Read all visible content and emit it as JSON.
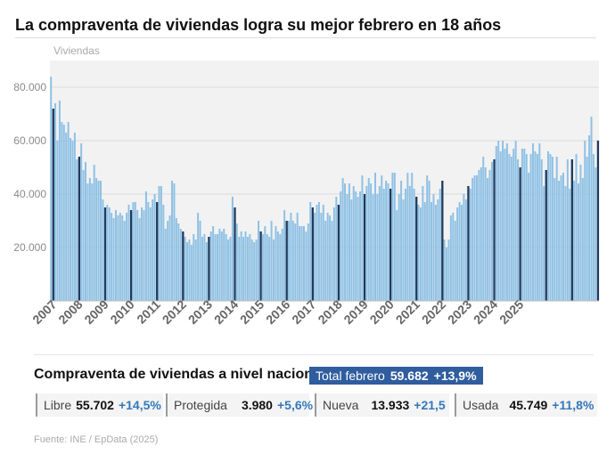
{
  "title": "La compraventa de viviendas logra su mejor febrero en 18 años",
  "chart_data": {
    "type": "bar",
    "ylabel": "Viviendas",
    "ylim": [
      0,
      90000
    ],
    "yticks": [
      "20.000",
      "40.000",
      "60.000",
      "80.000"
    ],
    "ytick_values": [
      20000,
      40000,
      60000,
      80000
    ],
    "xlabels": [
      "2007",
      "2008",
      "2009",
      "2010",
      "2011",
      "2012",
      "2013",
      "2014",
      "2015",
      "2016",
      "2017",
      "2018",
      "2019",
      "2020",
      "2021",
      "2022",
      "2023",
      "2024",
      "2025"
    ],
    "highlight": "February of each year",
    "series": [
      {
        "name": "Compraventa de viviendas",
        "start": "2007-01",
        "values": [
          84000,
          72000,
          74000,
          60000,
          75000,
          67000,
          66000,
          63000,
          67000,
          61000,
          60000,
          63000,
          53000,
          54000,
          59000,
          49000,
          52000,
          44000,
          46000,
          44000,
          51000,
          46000,
          45000,
          45000,
          38000,
          35000,
          36000,
          35000,
          33000,
          31000,
          34000,
          32000,
          33000,
          32000,
          30000,
          33000,
          36000,
          34000,
          37000,
          37000,
          34000,
          31000,
          35000,
          34000,
          41000,
          37000,
          35000,
          38000,
          40000,
          37000,
          43000,
          43000,
          36000,
          27000,
          30000,
          32000,
          45000,
          44000,
          31000,
          29000,
          27000,
          26000,
          24000,
          22000,
          23000,
          21000,
          25000,
          23000,
          33000,
          30000,
          24000,
          25000,
          22000,
          24000,
          26000,
          28000,
          25000,
          25000,
          27000,
          26000,
          27000,
          25000,
          23000,
          24000,
          39000,
          35000,
          29000,
          24000,
          26000,
          24000,
          26000,
          24000,
          25000,
          23000,
          22000,
          23000,
          30000,
          26000,
          25000,
          28000,
          25000,
          24000,
          30000,
          23000,
          28000,
          26000,
          25000,
          27000,
          34000,
          30000,
          30000,
          33000,
          30000,
          29000,
          33000,
          28000,
          28000,
          28000,
          26000,
          29000,
          37000,
          35000,
          33000,
          36000,
          37000,
          33000,
          36000,
          30000,
          33000,
          32000,
          30000,
          35000,
          39000,
          36000,
          41000,
          46000,
          44000,
          40000,
          44000,
          38000,
          43000,
          41000,
          39000,
          41000,
          47000,
          40000,
          43000,
          46000,
          44000,
          40000,
          48000,
          40000,
          43000,
          47000,
          42000,
          45000,
          44000,
          42000,
          48000,
          48000,
          34000,
          40000,
          45000,
          38000,
          42000,
          48000,
          43000,
          48000,
          42000,
          39000,
          36000,
          35000,
          43000,
          37000,
          47000,
          45000,
          37000,
          40000,
          36000,
          38000,
          42000,
          45000,
          23000,
          20000,
          23000,
          32000,
          33000,
          30000,
          35000,
          37000,
          36000,
          40000,
          38000,
          43000,
          42000,
          46000,
          47000,
          47000,
          49000,
          50000,
          54000,
          50000,
          46000,
          49000,
          52000,
          53000,
          58000,
          60000,
          56000,
          60000,
          57000,
          59000,
          55000,
          54000,
          57000,
          60000,
          53000,
          50000,
          57000,
          57000,
          55000,
          48000,
          55000,
          59000,
          56000,
          55000,
          59000,
          53000,
          43000,
          49000,
          56000,
          55000,
          54000,
          46000,
          54000,
          45000,
          47000,
          48000,
          43000,
          53000,
          42000,
          53000,
          45000,
          55000,
          44000,
          51000,
          46000,
          60000,
          54000,
          62000,
          69000,
          55000,
          50000,
          60000
        ]
      }
    ]
  },
  "summary": {
    "heading": "Compraventa de viviendas a nivel nacional",
    "total": {
      "label": "Total febrero",
      "value": "59.682",
      "change": "+13,9%"
    },
    "stats": [
      {
        "label": "Libre",
        "value": "55.702",
        "change": "+14,5%"
      },
      {
        "label": "Protegida",
        "value": "3.980",
        "change": "+5,6%"
      },
      {
        "label": "Nueva",
        "value": "13.933",
        "change": "+21,5"
      },
      {
        "label": "Usada",
        "value": "45.749",
        "change": "+11,8%"
      }
    ]
  },
  "source": "Fuente: INE / EpData (2025)",
  "colors": {
    "bar": "#8fc1e4",
    "highlight": "#1e3a5c",
    "plot_bg": "#f2f2f2",
    "accent": "#3478b9",
    "total_bg": "#2f5d9e"
  }
}
